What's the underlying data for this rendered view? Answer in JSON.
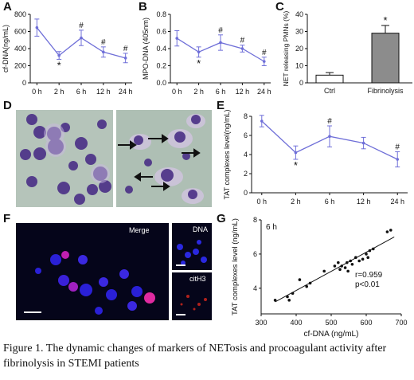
{
  "panels": {
    "A": "A",
    "B": "B",
    "C": "C",
    "D": "D",
    "E": "E",
    "F": "F",
    "G": "G"
  },
  "chart_data": [
    {
      "panel": "A",
      "type": "line",
      "ylabel": "cf-DNA(ng/mL)",
      "x": [
        "0 h",
        "2 h",
        "6 h",
        "12 h",
        "24 h"
      ],
      "values": [
        645,
        320,
        525,
        360,
        290
      ],
      "errors": [
        100,
        45,
        90,
        60,
        55
      ],
      "markers": [
        "",
        "*",
        "#",
        "#",
        "#"
      ],
      "ylim": [
        0,
        800
      ],
      "yticks": [
        "0",
        "200",
        "400",
        "600",
        "800"
      ],
      "color": "#6f6fd8"
    },
    {
      "panel": "B",
      "type": "line",
      "ylabel": "MPO-DNA (405nm)",
      "x": [
        "0 h",
        "2 h",
        "6 h",
        "12 h",
        "24 h"
      ],
      "values": [
        0.52,
        0.36,
        0.47,
        0.4,
        0.25
      ],
      "errors": [
        0.09,
        0.06,
        0.09,
        0.04,
        0.05
      ],
      "markers": [
        "",
        "*",
        "#",
        "#",
        "#"
      ],
      "ylim": [
        0.0,
        0.8
      ],
      "yticks": [
        "0.0",
        "0.2",
        "0.4",
        "0.6",
        "0.8"
      ],
      "color": "#6f6fd8"
    },
    {
      "panel": "C",
      "type": "bar",
      "ylabel": "NET releasing PMNs (%)",
      "categories": [
        "Ctrl",
        "Fibrinolysis"
      ],
      "values": [
        4.5,
        29
      ],
      "errors": [
        1.5,
        4.5
      ],
      "markers": [
        "",
        "*"
      ],
      "ylim": [
        0,
        40
      ],
      "yticks": [
        "0",
        "10",
        "20",
        "30",
        "40"
      ],
      "bar_colors": [
        "#ffffff",
        "#8c8c8c"
      ]
    },
    {
      "panel": "E",
      "type": "line",
      "ylabel": "TAT complexes level(ng/mL)",
      "x": [
        "0 h",
        "2 h",
        "6 h",
        "12 h",
        "24 h"
      ],
      "values": [
        7.5,
        4.2,
        5.9,
        5.2,
        3.5
      ],
      "errors": [
        0.6,
        0.7,
        1.1,
        0.6,
        0.8
      ],
      "markers": [
        "",
        "*",
        "#",
        "",
        "#"
      ],
      "ylim": [
        0,
        8
      ],
      "yticks": [
        "0",
        "2",
        "4",
        "6",
        "8"
      ],
      "color": "#6f6fd8"
    },
    {
      "panel": "G",
      "type": "scatter",
      "title": "6 h",
      "xlabel": "cf-DNA (ng/mL)",
      "ylabel": "TAT complexes level (ng/mL)",
      "xlim": [
        300,
        700
      ],
      "ylim": [
        2.5,
        8
      ],
      "xticks": [
        "300",
        "400",
        "500",
        "600",
        "700"
      ],
      "yticks": [
        "4",
        "6",
        "8"
      ],
      "annotation": [
        "r=0.959",
        "p<0.01"
      ],
      "points": [
        [
          340,
          3.3
        ],
        [
          375,
          3.5
        ],
        [
          380,
          3.3
        ],
        [
          390,
          3.7
        ],
        [
          410,
          4.5
        ],
        [
          430,
          4.1
        ],
        [
          440,
          4.3
        ],
        [
          480,
          5.0
        ],
        [
          510,
          5.3
        ],
        [
          520,
          5.5
        ],
        [
          525,
          5.1
        ],
        [
          530,
          5.3
        ],
        [
          540,
          5.2
        ],
        [
          545,
          5.5
        ],
        [
          548,
          5.0
        ],
        [
          555,
          5.6
        ],
        [
          560,
          5.4
        ],
        [
          570,
          5.8
        ],
        [
          580,
          5.6
        ],
        [
          590,
          5.7
        ],
        [
          600,
          6.0
        ],
        [
          605,
          5.8
        ],
        [
          610,
          6.2
        ],
        [
          620,
          6.3
        ],
        [
          660,
          7.3
        ],
        [
          670,
          7.4
        ]
      ],
      "fit": [
        [
          340,
          3.2
        ],
        [
          680,
          7.0
        ]
      ]
    }
  ],
  "micro_labels": {
    "merge": "Merge",
    "dna": "DNA",
    "cith3": "citH3"
  },
  "caption": "Figure 1. The dynamic changes of markers of NETosis and procoagulant activity after fibrinolysis in STEMI patients",
  "colors": {
    "line": "#6f6fd8",
    "fluo_bg": "#05051a",
    "stain_bg": "#aebfb4"
  }
}
